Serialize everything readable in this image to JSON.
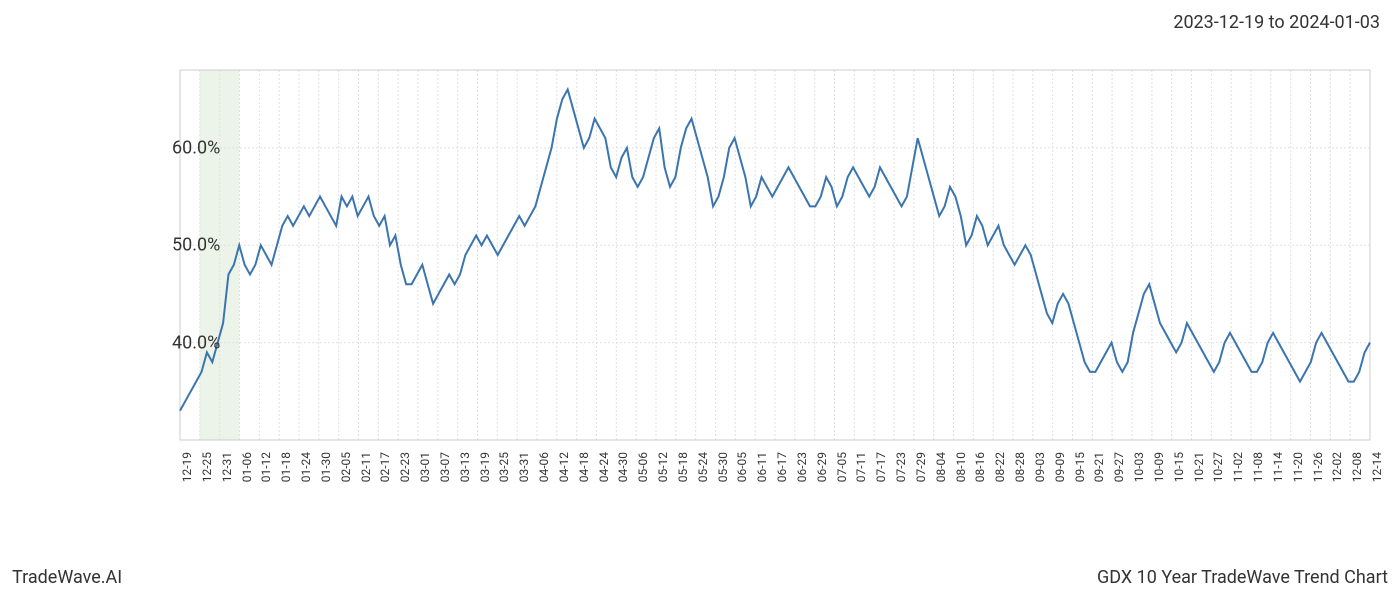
{
  "header": {
    "date_range": "2023-12-19 to 2024-01-03"
  },
  "footer": {
    "left": "TradeWave.AI",
    "right": "GDX 10 Year TradeWave Trend Chart"
  },
  "chart": {
    "type": "line",
    "background_color": "#ffffff",
    "plot_border_color": "#cccccc",
    "grid_color": "#e0e0e0",
    "grid_dash": "2,2",
    "line_color": "#3b75af",
    "line_width": 2,
    "highlight_band": {
      "x_start_index": 1,
      "x_end_index": 3,
      "fill_color": "#d9ead3",
      "opacity": 0.5
    },
    "ylim": [
      30,
      68
    ],
    "yticks": [
      {
        "v": 40,
        "label": "40.0%"
      },
      {
        "v": 50,
        "label": "50.0%"
      },
      {
        "v": 60,
        "label": "60.0%"
      }
    ],
    "x_labels": [
      "12-19",
      "12-25",
      "12-31",
      "01-06",
      "01-12",
      "01-18",
      "01-24",
      "01-30",
      "02-05",
      "02-11",
      "02-17",
      "02-23",
      "03-01",
      "03-07",
      "03-13",
      "03-19",
      "03-25",
      "03-31",
      "04-06",
      "04-12",
      "04-18",
      "04-24",
      "04-30",
      "05-06",
      "05-12",
      "05-18",
      "05-24",
      "05-30",
      "06-05",
      "06-11",
      "06-17",
      "06-23",
      "06-29",
      "07-05",
      "07-11",
      "07-17",
      "07-23",
      "07-29",
      "08-04",
      "08-10",
      "08-16",
      "08-22",
      "08-28",
      "09-03",
      "09-09",
      "09-15",
      "09-21",
      "09-27",
      "10-03",
      "10-09",
      "10-15",
      "10-21",
      "10-27",
      "11-02",
      "11-08",
      "11-14",
      "11-20",
      "11-26",
      "12-02",
      "12-08",
      "12-14"
    ],
    "series": [
      33,
      34,
      35,
      36,
      37,
      39,
      38,
      40,
      42,
      47,
      48,
      50,
      48,
      47,
      48,
      50,
      49,
      48,
      50,
      52,
      53,
      52,
      53,
      54,
      53,
      54,
      55,
      54,
      53,
      52,
      55,
      54,
      55,
      53,
      54,
      55,
      53,
      52,
      53,
      50,
      51,
      48,
      46,
      46,
      47,
      48,
      46,
      44,
      45,
      46,
      47,
      46,
      47,
      49,
      50,
      51,
      50,
      51,
      50,
      49,
      50,
      51,
      52,
      53,
      52,
      53,
      54,
      56,
      58,
      60,
      63,
      65,
      66,
      64,
      62,
      60,
      61,
      63,
      62,
      61,
      58,
      57,
      59,
      60,
      57,
      56,
      57,
      59,
      61,
      62,
      58,
      56,
      57,
      60,
      62,
      63,
      61,
      59,
      57,
      54,
      55,
      57,
      60,
      61,
      59,
      57,
      54,
      55,
      57,
      56,
      55,
      56,
      57,
      58,
      57,
      56,
      55,
      54,
      54,
      55,
      57,
      56,
      54,
      55,
      57,
      58,
      57,
      56,
      55,
      56,
      58,
      57,
      56,
      55,
      54,
      55,
      58,
      61,
      59,
      57,
      55,
      53,
      54,
      56,
      55,
      53,
      50,
      51,
      53,
      52,
      50,
      51,
      52,
      50,
      49,
      48,
      49,
      50,
      49,
      47,
      45,
      43,
      42,
      44,
      45,
      44,
      42,
      40,
      38,
      37,
      37,
      38,
      39,
      40,
      38,
      37,
      38,
      41,
      43,
      45,
      46,
      44,
      42,
      41,
      40,
      39,
      40,
      42,
      41,
      40,
      39,
      38,
      37,
      38,
      40,
      41,
      40,
      39,
      38,
      37,
      37,
      38,
      40,
      41,
      40,
      39,
      38,
      37,
      36,
      37,
      38,
      40,
      41,
      40,
      39,
      38,
      37,
      36,
      36,
      37,
      39,
      40
    ],
    "label_fontsize": 12,
    "axis_label_fontsize": 18,
    "title_fontsize": 18
  }
}
